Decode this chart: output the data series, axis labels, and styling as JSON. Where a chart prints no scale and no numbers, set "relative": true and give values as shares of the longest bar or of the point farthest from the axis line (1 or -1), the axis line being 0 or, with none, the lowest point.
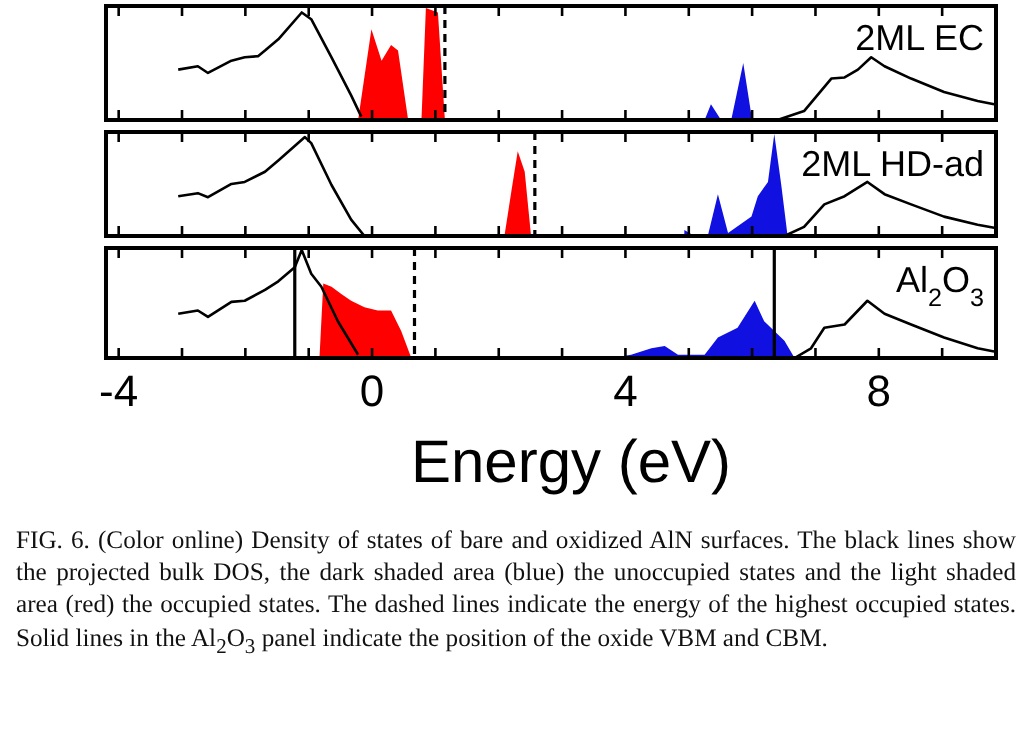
{
  "chart_data": [
    {
      "type": "area",
      "title": "2ML EC",
      "relative": true,
      "xlim": [
        -4.2,
        9.85
      ],
      "xticks": [
        {
          "value": -4,
          "label": null
        },
        {
          "value": -3,
          "label": null
        },
        {
          "value": -2,
          "label": null
        },
        {
          "value": -1,
          "label": null
        },
        {
          "value": 0,
          "label": null
        },
        {
          "value": 1,
          "label": null
        },
        {
          "value": 2,
          "label": null
        },
        {
          "value": 3,
          "label": null
        },
        {
          "value": 4,
          "label": null
        },
        {
          "value": 5,
          "label": null
        },
        {
          "value": 6,
          "label": null
        },
        {
          "value": 7,
          "label": null
        },
        {
          "value": 8,
          "label": null
        },
        {
          "value": 9,
          "label": null
        }
      ],
      "tick_labels": false,
      "series": [
        {
          "type": "line",
          "color": "#000000",
          "x": [
            -3.06,
            -2.75,
            -2.59,
            -2.22,
            -2.01,
            -1.8,
            -1.69,
            -1.48,
            -1.11,
            -0.96,
            -0.64,
            -0.33,
            -0.17,
            3,
            6.4,
            6.82,
            7.25,
            7.46,
            7.67,
            7.88,
            8.09,
            8.51,
            9.03,
            9.56,
            9.82
          ],
          "values": [
            0.45,
            0.48,
            0.42,
            0.53,
            0.56,
            0.57,
            0.62,
            0.72,
            0.96,
            0.9,
            0.56,
            0.22,
            0.03,
            null,
            0,
            0.08,
            0.37,
            0.38,
            0.45,
            0.56,
            0.48,
            0.37,
            0.25,
            0.17,
            0.14
          ]
        },
        {
          "color": "#ff0000",
          "x": [
            -0.22,
            -0.01,
            0.15,
            0.3,
            0.41,
            0.57,
            0.78,
            0.85,
            1.04,
            1.15
          ],
          "values": [
            0,
            0.81,
            0.53,
            0.67,
            0.62,
            0,
            0,
            1,
            0.96,
            0
          ]
        },
        {
          "color": "#1010e0",
          "x": [
            5.25,
            5.35,
            5.51,
            5.67,
            5.86,
            6.0
          ],
          "values": [
            0,
            0.14,
            0,
            0,
            0.51,
            0
          ]
        }
      ],
      "ref_lines": [
        {
          "axis": "x",
          "value": 1.15,
          "line_style": "dashed",
          "color": "#000000"
        }
      ]
    },
    {
      "type": "area",
      "title": "2ML HD-ad",
      "relative": true,
      "xlim": [
        -4.2,
        9.85
      ],
      "xticks": [
        {
          "value": -4,
          "label": null
        },
        {
          "value": -3,
          "label": null
        },
        {
          "value": -2,
          "label": null
        },
        {
          "value": -1,
          "label": null
        },
        {
          "value": 0,
          "label": null
        },
        {
          "value": 1,
          "label": null
        },
        {
          "value": 2,
          "label": null
        },
        {
          "value": 3,
          "label": null
        },
        {
          "value": 4,
          "label": null
        },
        {
          "value": 5,
          "label": null
        },
        {
          "value": 6,
          "label": null
        },
        {
          "value": 7,
          "label": null
        },
        {
          "value": 8,
          "label": null
        },
        {
          "value": 9,
          "label": null
        }
      ],
      "tick_labels": false,
      "series": [
        {
          "type": "line",
          "color": "#000000",
          "x": [
            -3.06,
            -2.75,
            -2.59,
            -2.22,
            -2.01,
            -1.69,
            -1.48,
            -1.06,
            -0.96,
            -0.64,
            -0.33,
            -0.12,
            3,
            6.51,
            6.82,
            7.14,
            7.46,
            7.82,
            8.09,
            8.51,
            9.03,
            9.56,
            9.82
          ],
          "values": [
            0.39,
            0.42,
            0.38,
            0.51,
            0.53,
            0.63,
            0.74,
            0.97,
            0.91,
            0.5,
            0.16,
            0,
            null,
            0,
            0.09,
            0.31,
            0.39,
            0.53,
            0.41,
            0.31,
            0.19,
            0.11,
            0.08
          ]
        },
        {
          "color": "#ff0000",
          "x": [
            2.09,
            2.2,
            2.3,
            2.41,
            2.51
          ],
          "values": [
            0,
            0.44,
            0.83,
            0.63,
            0
          ]
        },
        {
          "color": "#1010e0",
          "x": [
            4.93,
            5.09,
            5.3,
            5.46,
            5.62,
            5.99,
            6.09,
            6.25,
            6.35,
            6.46,
            6.56
          ],
          "values": [
            0.06,
            0,
            0,
            0.41,
            0.03,
            0.19,
            0.39,
            0.53,
            1,
            0.5,
            0
          ]
        }
      ],
      "ref_lines": [
        {
          "axis": "x",
          "value": 2.57,
          "line_style": "dashed",
          "color": "#000000"
        }
      ]
    },
    {
      "type": "area",
      "title": "Al$_{2}$O$_{3}$",
      "xlabel": "Energy (eV)",
      "relative": true,
      "xlim": [
        -4.2,
        9.85
      ],
      "xticks": [
        -4,
        {
          "value": -3,
          "label": null
        },
        {
          "value": -2,
          "label": null
        },
        {
          "value": -1,
          "label": null
        },
        0,
        {
          "value": 1,
          "label": null
        },
        {
          "value": 2,
          "label": null
        },
        {
          "value": 3,
          "label": null
        },
        4,
        {
          "value": 5,
          "label": null
        },
        {
          "value": 6,
          "label": null
        },
        {
          "value": 7,
          "label": null
        },
        8,
        {
          "value": 9,
          "label": null
        }
      ],
      "tick_labels": "x",
      "series": [
        {
          "type": "line",
          "color": "#000000",
          "x": [
            -3.06,
            -2.75,
            -2.59,
            -2.22,
            -2.01,
            -1.69,
            -1.48,
            -1.22,
            -1.11,
            -0.96,
            -0.8,
            -0.54,
            -0.22,
            3,
            6.67,
            6.93,
            7.14,
            7.46,
            7.82,
            8.09,
            8.51,
            9.03,
            9.56,
            9.82
          ],
          "values": [
            0.41,
            0.44,
            0.38,
            0.52,
            0.53,
            0.63,
            0.71,
            0.84,
            1,
            0.78,
            0.66,
            0.34,
            0.03,
            null,
            0,
            0.09,
            0.28,
            0.31,
            0.53,
            0.41,
            0.31,
            0.19,
            0.09,
            0.06
          ]
        },
        {
          "color": "#ff0000",
          "x": [
            -0.83,
            -0.77,
            -0.64,
            -0.48,
            -0.33,
            -0.12,
            0.09,
            0.3,
            0.46,
            0.62
          ],
          "values": [
            0,
            0.69,
            0.66,
            0.59,
            0.53,
            0.47,
            0.44,
            0.44,
            0.25,
            0
          ]
        },
        {
          "color": "#1010e0",
          "x": [
            3.77,
            4.09,
            4.41,
            4.62,
            4.83,
            5.25,
            5.46,
            5.77,
            6.04,
            6.19,
            6.51,
            6.67
          ],
          "values": [
            0,
            0.03,
            0.09,
            0.11,
            0.03,
            0.03,
            0.19,
            0.28,
            0.53,
            0.34,
            0.16,
            0
          ]
        }
      ],
      "ref_lines": [
        {
          "axis": "x",
          "value": 0.67,
          "line_style": "dashed",
          "color": "#000000"
        },
        {
          "axis": "x",
          "value": -1.22,
          "line_style": "solid",
          "color": "#000000"
        },
        {
          "axis": "x",
          "value": 6.35,
          "line_style": "solid",
          "color": "#000000"
        }
      ],
      "annotations": [
        "FIG. 6. (Color online) Density of states of bare and oxidized AlN surfaces. The black lines show the projected bulk DOS, the dark shaded area (blue) the unoccupied states and the light shaded area (red) the occupied states. The dashed lines indicate the energy of the highest occupied states. Solid lines in the Al$_{2}$O$_{3}$ panel indicate the position of the oxide VBM and CBM."
      ]
    }
  ]
}
